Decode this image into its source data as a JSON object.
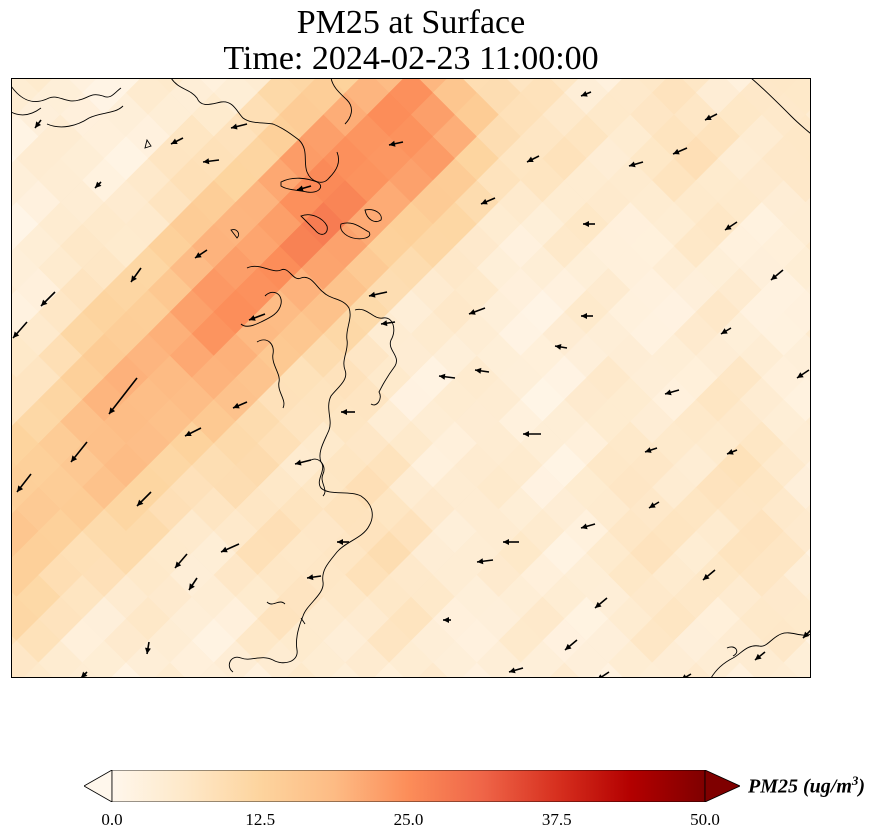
{
  "title": {
    "line1": "PM25 at Surface",
    "line2": "Time: 2024-02-23 11:00:00"
  },
  "colorbar": {
    "label_main": "PM25 (ug/m",
    "label_sup": "3",
    "label_close": ")",
    "ticks": [
      "0.0",
      "12.5",
      "25.0",
      "37.5",
      "50.0"
    ],
    "tick_values": [
      0,
      12.5,
      25,
      37.5,
      50
    ],
    "vmin": 0,
    "vmax": 50,
    "extend": "both",
    "colormap": "OrRd",
    "colormap_stops": [
      "#fff7ec",
      "#fee8c8",
      "#fdd49e",
      "#fdbb84",
      "#fc8d59",
      "#ef6548",
      "#d7301f",
      "#b30000",
      "#7f0000"
    ]
  },
  "map_data": {
    "variable": "PM25",
    "units": "ug/m3",
    "level": "surface",
    "field_description": "low concentrations (0-10) over most of the domain with a diagonal plume rising to about 22-26 in the upper-left center",
    "plume_peak_value": 26,
    "background_value": 3,
    "wind_vectors": "arrows mostly pointing west / southwest across the domain",
    "coastline_color": "#000000",
    "arrow_color": "#000000"
  }
}
